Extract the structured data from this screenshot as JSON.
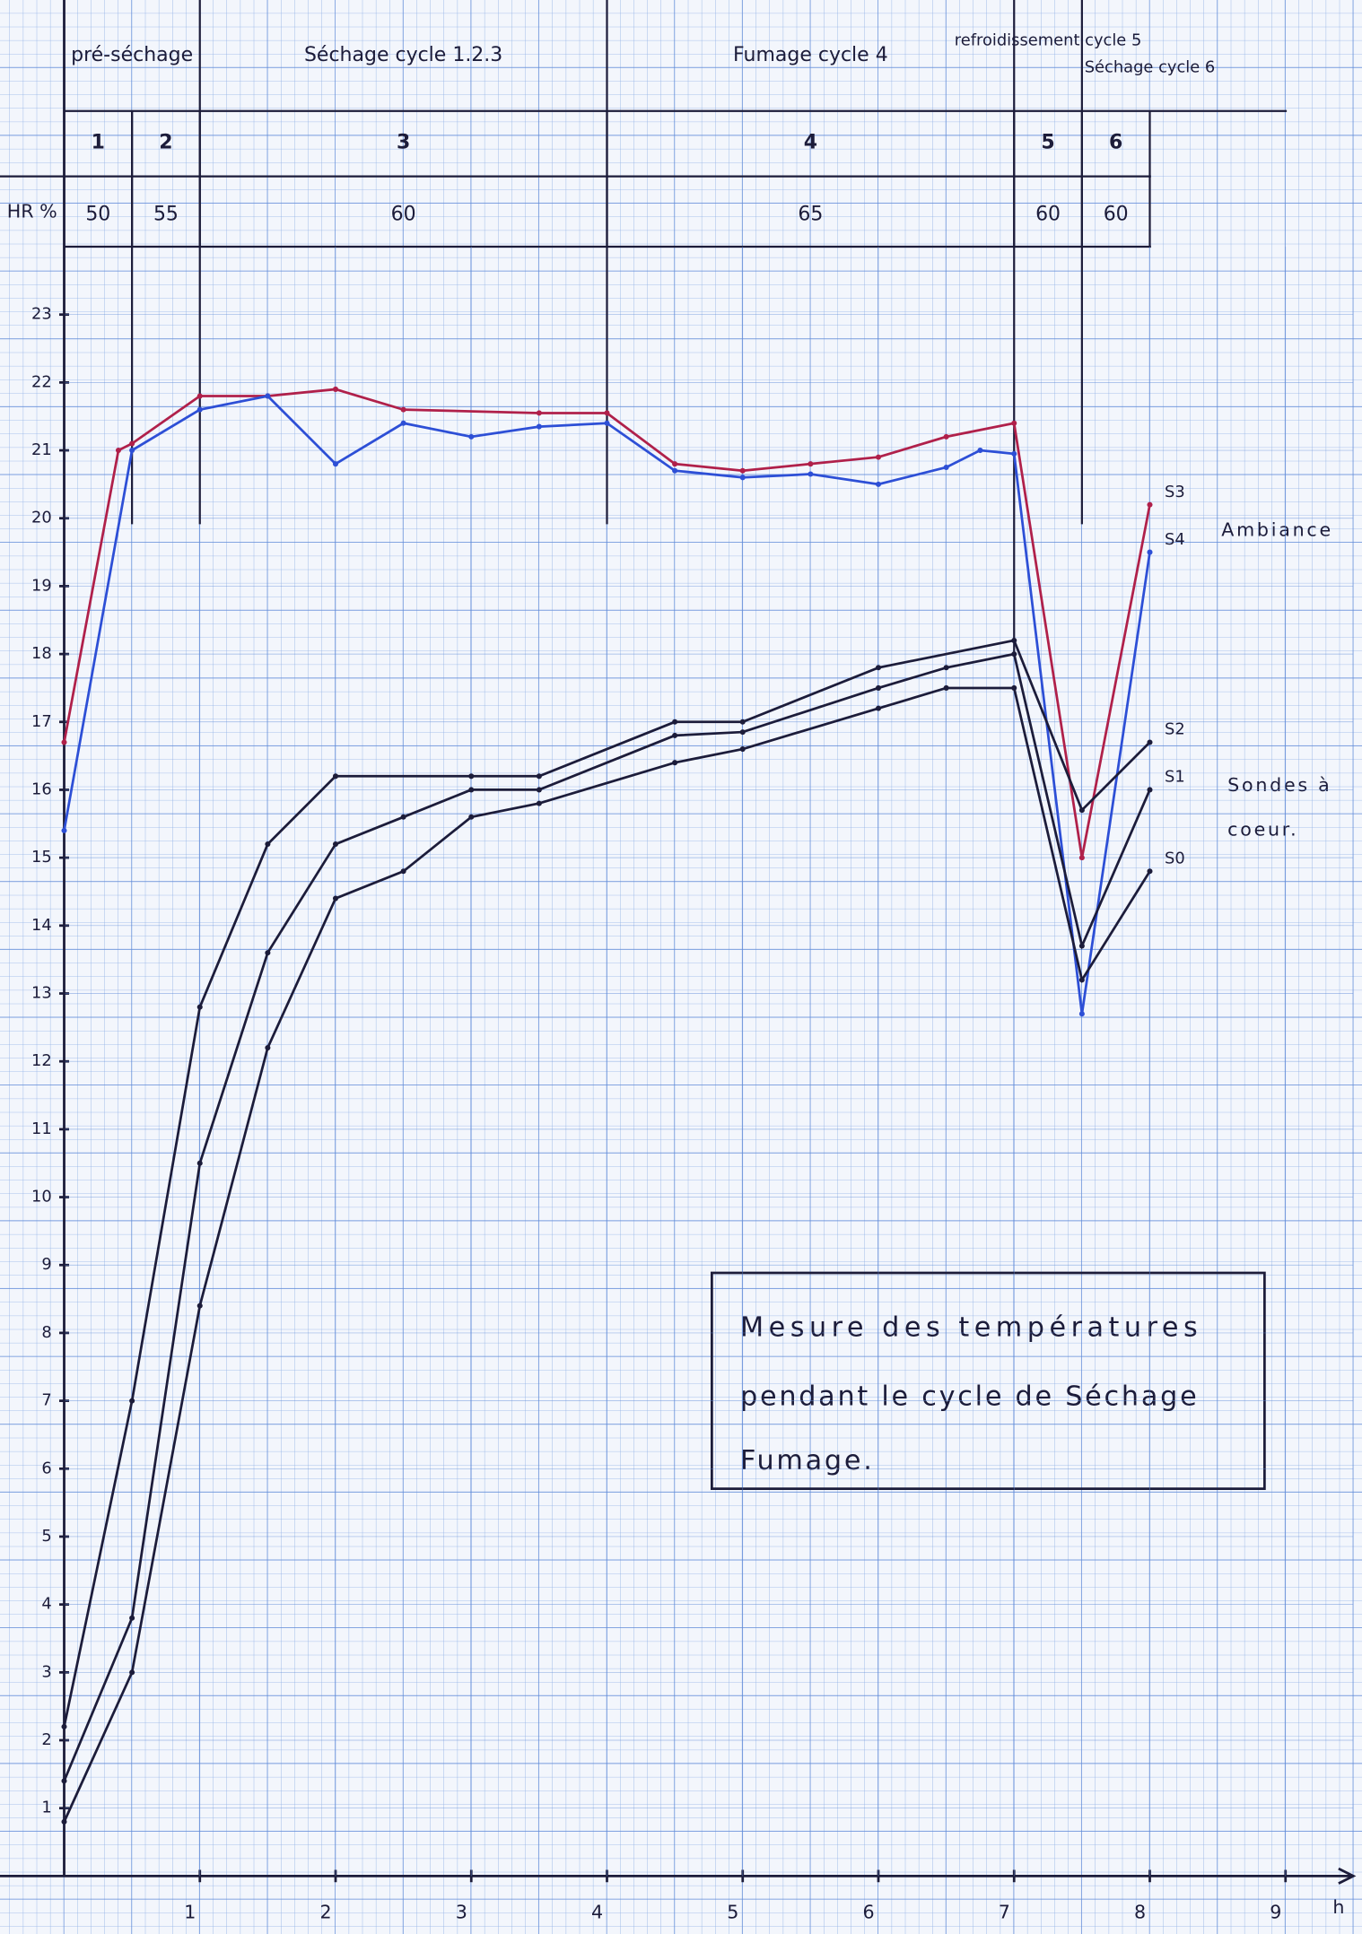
{
  "chart_data": {
    "type": "line",
    "y_header": "HR %",
    "x_axis_label": "h",
    "xlim": [
      0,
      9.5
    ],
    "ylim": [
      0,
      24
    ],
    "xticks": [
      1,
      2,
      3,
      4,
      5,
      6,
      7,
      8,
      9
    ],
    "yticks": [
      1,
      2,
      3,
      4,
      5,
      6,
      7,
      8,
      9,
      10,
      11,
      12,
      13,
      14,
      15,
      16,
      17,
      18,
      19,
      20,
      21,
      22,
      23
    ],
    "grid": true,
    "stage_labels": [
      {
        "label": "pré-séchage",
        "start": 0,
        "end": 1
      },
      {
        "label": "Séchage cycle 1.2.3",
        "start": 1,
        "end": 4
      },
      {
        "label": "Fumage cycle 4",
        "start": 4,
        "end": 7
      },
      {
        "label": "refroidissement cycle 5",
        "start": 7,
        "end": 7.5
      },
      {
        "label": "Séchage cycle 6",
        "start": 7.5,
        "end": 8.5
      }
    ],
    "phases": [
      {
        "number": 1,
        "hr": 50,
        "start": 0,
        "end": 0.5
      },
      {
        "number": 2,
        "hr": 55,
        "start": 0.5,
        "end": 1
      },
      {
        "number": 3,
        "hr": 60,
        "start": 1,
        "end": 4
      },
      {
        "number": 4,
        "hr": 65,
        "start": 4,
        "end": 7
      },
      {
        "number": 5,
        "hr": 60,
        "start": 7,
        "end": 7.5
      },
      {
        "number": 6,
        "hr": 60,
        "start": 7.5,
        "end": 8
      }
    ],
    "series": [
      {
        "name": "S3",
        "color": "#b0204a",
        "x": [
          0,
          0.4,
          0.5,
          1,
          1.5,
          2,
          2.5,
          3.5,
          4,
          4.5,
          5,
          5.5,
          6,
          6.5,
          7,
          7.5,
          8
        ],
        "values": [
          16.7,
          21.0,
          21.1,
          21.8,
          21.8,
          21.9,
          21.6,
          21.55,
          21.55,
          20.8,
          20.7,
          20.8,
          20.9,
          21.2,
          21.4,
          15.0,
          20.2
        ]
      },
      {
        "name": "S4",
        "color": "#2d4fd6",
        "x": [
          0,
          0.5,
          1,
          1.5,
          2,
          2.5,
          3,
          3.5,
          4,
          4.5,
          5,
          5.5,
          6,
          6.5,
          6.75,
          7,
          7.5,
          8
        ],
        "values": [
          15.4,
          21.0,
          21.6,
          21.8,
          20.8,
          21.4,
          21.2,
          21.35,
          21.4,
          20.7,
          20.6,
          20.65,
          20.5,
          20.75,
          21.0,
          20.95,
          12.7,
          19.5
        ]
      },
      {
        "name": "S2",
        "color": "#1c1c3a",
        "x": [
          0,
          0.5,
          1,
          1.5,
          2,
          3,
          3.5,
          4.5,
          5,
          6,
          7,
          7.5,
          8
        ],
        "values": [
          2.2,
          7.0,
          12.8,
          15.2,
          16.2,
          16.2,
          16.2,
          17.0,
          17.0,
          17.8,
          18.2,
          15.7,
          16.7
        ]
      },
      {
        "name": "S1",
        "color": "#1c1c3a",
        "x": [
          0,
          0.5,
          1,
          1.5,
          2,
          2.5,
          3,
          3.5,
          4.5,
          5,
          6,
          6.5,
          7,
          7.5,
          8
        ],
        "values": [
          1.4,
          3.8,
          10.5,
          13.6,
          15.2,
          15.6,
          16.0,
          16.0,
          16.8,
          16.85,
          17.5,
          17.8,
          18.0,
          13.7,
          16.0
        ]
      },
      {
        "name": "S0",
        "color": "#1c1c3a",
        "x": [
          0,
          0.5,
          1,
          1.5,
          2,
          2.5,
          3,
          3.5,
          4.5,
          5,
          6,
          6.5,
          7,
          7.5,
          8
        ],
        "values": [
          0.8,
          3.0,
          8.4,
          12.2,
          14.4,
          14.8,
          15.6,
          15.8,
          16.4,
          16.6,
          17.2,
          17.5,
          17.5,
          13.2,
          14.8
        ]
      }
    ],
    "annotations": [
      "Ambiance",
      "Sondes à",
      "coeur."
    ],
    "note_box": [
      "Mesure des températures",
      "pendant le cycle de Séchage",
      "Fumage."
    ]
  }
}
